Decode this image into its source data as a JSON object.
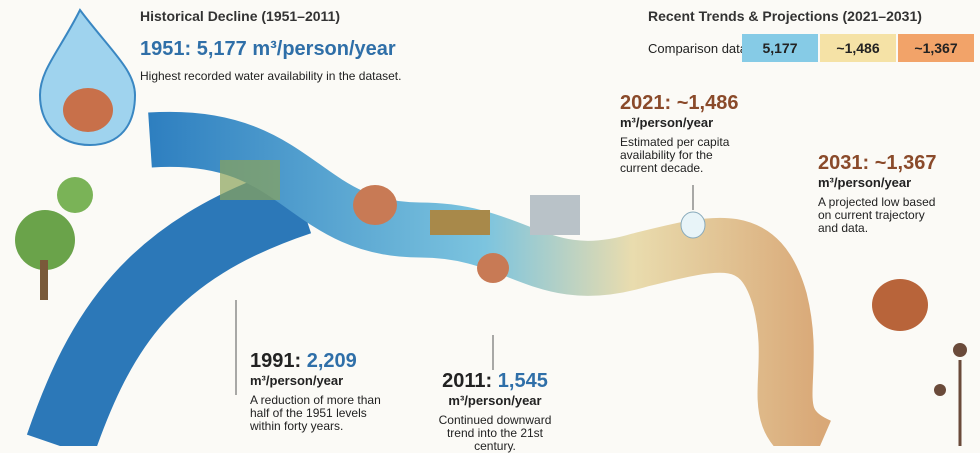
{
  "historical": {
    "title": "Historical Decline (1951–2011)",
    "headline": "1951: 5,177 m³/person/year",
    "note": "Highest recorded water availability in the dataset."
  },
  "recent": {
    "title": "Recent Trends & Projections (2021–2031)",
    "comparison_label": "Comparison data",
    "comparison_values": [
      "5,177",
      "~1,486",
      "~1,367"
    ]
  },
  "milestones": [
    {
      "year": "1991:",
      "value": "2,209",
      "unit": "m³/person/year",
      "note": "A reduction of more than half of the 1951 levels within forty years."
    },
    {
      "year": "2011:",
      "value": "1,545",
      "unit": "m³/person/year",
      "note": "Continued downward trend into the 21st century."
    },
    {
      "year": "2021:",
      "value": "~1,486",
      "unit": "m³/person/year",
      "note": "Estimated per capita availability for the current decade."
    },
    {
      "year": "2031:",
      "value": "~1,367",
      "unit": "m³/person/year",
      "note": "A projected low based on current trajectory and data."
    }
  ]
}
